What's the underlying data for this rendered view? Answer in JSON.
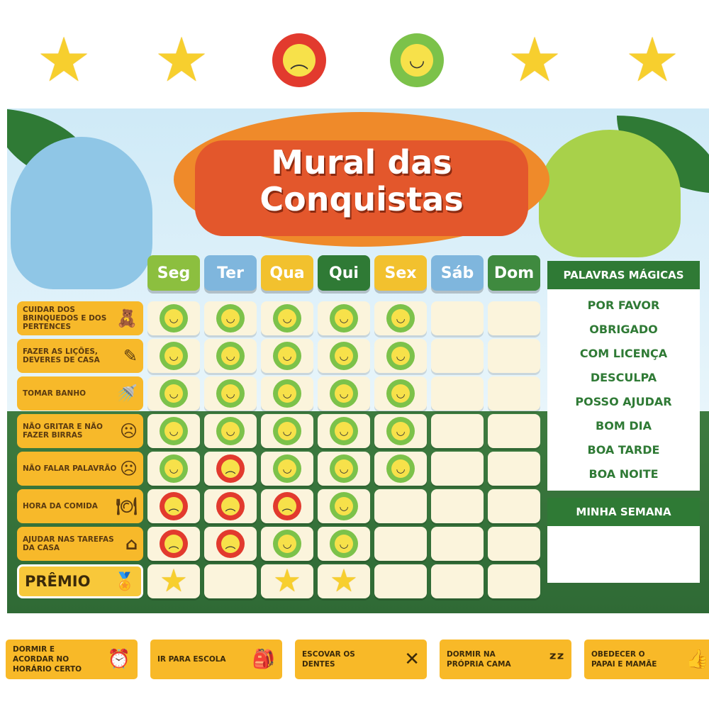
{
  "colors": {
    "happy_ring": "#7cc24a",
    "sad_ring": "#e23a2e",
    "face": "#f7e14a",
    "star": "#f7cf2e",
    "green": "#2f7a35",
    "yellow": "#f7b92a"
  },
  "top_tokens": [
    "star",
    "star",
    "sad",
    "happy",
    "star",
    "star"
  ],
  "title": {
    "line1": "Mural das",
    "line2": "Conquistas"
  },
  "days": [
    {
      "label": "Seg",
      "color": "#8cbf3f"
    },
    {
      "label": "Ter",
      "color": "#7fb6dd"
    },
    {
      "label": "Qua",
      "color": "#f2c12e"
    },
    {
      "label": "Qui",
      "color": "#2f7a35"
    },
    {
      "label": "Sex",
      "color": "#f2c12e"
    },
    {
      "label": "Sáb",
      "color": "#7fb6dd"
    },
    {
      "label": "Dom",
      "color": "#3f8a3f"
    }
  ],
  "tasks": [
    {
      "label": "CUIDAR DOS BRINQUEDOS E DOS PERTENCES",
      "icon": "teddy-bear-icon",
      "marks": [
        "happy",
        "happy",
        "happy",
        "happy",
        "happy",
        "",
        ""
      ]
    },
    {
      "label": "FAZER AS LIÇÕES, DEVERES DE CASA",
      "icon": "homework-icon",
      "marks": [
        "happy",
        "happy",
        "happy",
        "happy",
        "happy",
        "",
        ""
      ]
    },
    {
      "label": "TOMAR BANHO",
      "icon": "shower-icon",
      "marks": [
        "happy",
        "happy",
        "happy",
        "happy",
        "happy",
        "",
        ""
      ]
    },
    {
      "label": "NÃO GRITAR E NÃO FAZER BIRRAS",
      "icon": "shouting-child-icon",
      "marks": [
        "happy",
        "happy",
        "happy",
        "happy",
        "happy",
        "",
        ""
      ]
    },
    {
      "label": "NÃO FALAR PALAVRÃO",
      "icon": "angry-child-icon",
      "marks": [
        "happy",
        "sad",
        "happy",
        "happy",
        "happy",
        "",
        ""
      ]
    },
    {
      "label": "HORA DA COMIDA",
      "icon": "plate-icon",
      "marks": [
        "sad",
        "sad",
        "sad",
        "happy",
        "",
        "",
        ""
      ]
    },
    {
      "label": "AJUDAR NAS TAREFAS DA CASA",
      "icon": "house-hand-icon",
      "marks": [
        "sad",
        "sad",
        "happy",
        "happy",
        "",
        "",
        ""
      ]
    }
  ],
  "prize": {
    "label": "PRÊMIO",
    "icon": "medal-icon",
    "marks": [
      "star",
      "",
      "star",
      "star",
      "",
      "",
      ""
    ]
  },
  "magic_words": {
    "title": "PALAVRAS MÁGICAS",
    "items": [
      "POR FAVOR",
      "OBRIGADO",
      "COM LICENÇA",
      "DESCULPA",
      "POSSO AJUDAR",
      "BOM DIA",
      "BOA TARDE",
      "BOA NOITE"
    ]
  },
  "my_week": {
    "title": "MINHA SEMANA"
  },
  "extra_tasks": [
    {
      "label": "DORMIR E ACORDAR NO HORÁRIO CERTO",
      "icon": "alarm-clock-icon"
    },
    {
      "label": "IR PARA ESCOLA",
      "icon": "school-child-icon"
    },
    {
      "label": "ESCOVAR OS DENTES",
      "icon": "toothbrush-icon"
    },
    {
      "label": "DORMIR NA PRÓPRIA CAMA",
      "icon": "sleep-zzz-icon"
    },
    {
      "label": "OBEDECER O PAPAI E MAMÃE",
      "icon": "thumbs-up-icon"
    }
  ]
}
